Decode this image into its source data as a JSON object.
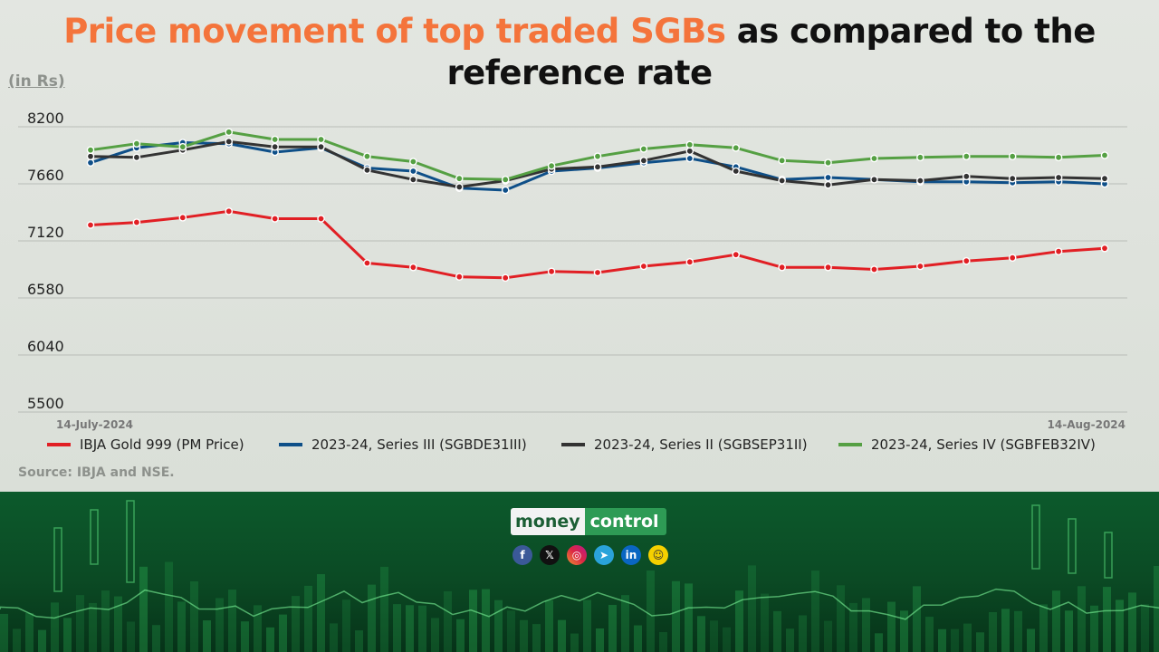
{
  "title": {
    "highlight": "Price movement of top traded SGBs",
    "rest_line1": " as compared to the",
    "line2": "reference rate"
  },
  "unit_label": "(in Rs)",
  "source": "Source: IBJA and NSE.",
  "brand": {
    "part1": "money",
    "part2": "control"
  },
  "social_icons": [
    "facebook-icon",
    "x-icon",
    "instagram-icon",
    "telegram-icon",
    "linkedin-icon",
    "snapchat-icon"
  ],
  "colors": {
    "title_accent": "#f4743b",
    "ibja": "#e11f24",
    "series3": "#0e4f88",
    "series2": "#333333",
    "series4": "#55a043"
  },
  "chart_data": {
    "type": "line",
    "title": "Price movement of top traded SGBs as compared to the reference rate",
    "ylabel": "(in Rs)",
    "ylim": [
      5500,
      8200
    ],
    "yticks": [
      8200,
      7660,
      7120,
      6580,
      6040,
      5500
    ],
    "x_start_label": "14-July-2024",
    "x_end_label": "14-Aug-2024",
    "grid": true,
    "legend_position": "bottom",
    "series": [
      {
        "name": "IBJA Gold 999 (PM Price)",
        "color": "#e11f24",
        "values": [
          7270,
          7295,
          7340,
          7400,
          7330,
          7330,
          6910,
          6870,
          6780,
          6770,
          6830,
          6820,
          6880,
          6920,
          6990,
          6870,
          6870,
          6850,
          6880,
          6930,
          6960,
          7020,
          7050
        ]
      },
      {
        "name": "2023-24, Series III (SGBDE31III)",
        "color": "#0e4f88",
        "values": [
          7860,
          8000,
          8050,
          8040,
          7960,
          8000,
          7810,
          7780,
          7620,
          7600,
          7780,
          7810,
          7860,
          7900,
          7820,
          7700,
          7720,
          7700,
          7680,
          7680,
          7670,
          7680,
          7660
        ]
      },
      {
        "name": "2023-24, Series II (SGBSEP31II)",
        "color": "#333333",
        "values": [
          7920,
          7910,
          7980,
          8060,
          8010,
          8010,
          7790,
          7700,
          7630,
          7690,
          7800,
          7820,
          7880,
          7970,
          7780,
          7690,
          7650,
          7700,
          7690,
          7730,
          7710,
          7720,
          7710
        ]
      },
      {
        "name": "2023-24, Series IV (SGBFEB32IV)",
        "color": "#55a043",
        "values": [
          7980,
          8040,
          8010,
          8150,
          8080,
          8080,
          7920,
          7870,
          7710,
          7700,
          7830,
          7920,
          7990,
          8030,
          8000,
          7880,
          7860,
          7900,
          7910,
          7920,
          7920,
          7910,
          7930
        ]
      }
    ]
  }
}
